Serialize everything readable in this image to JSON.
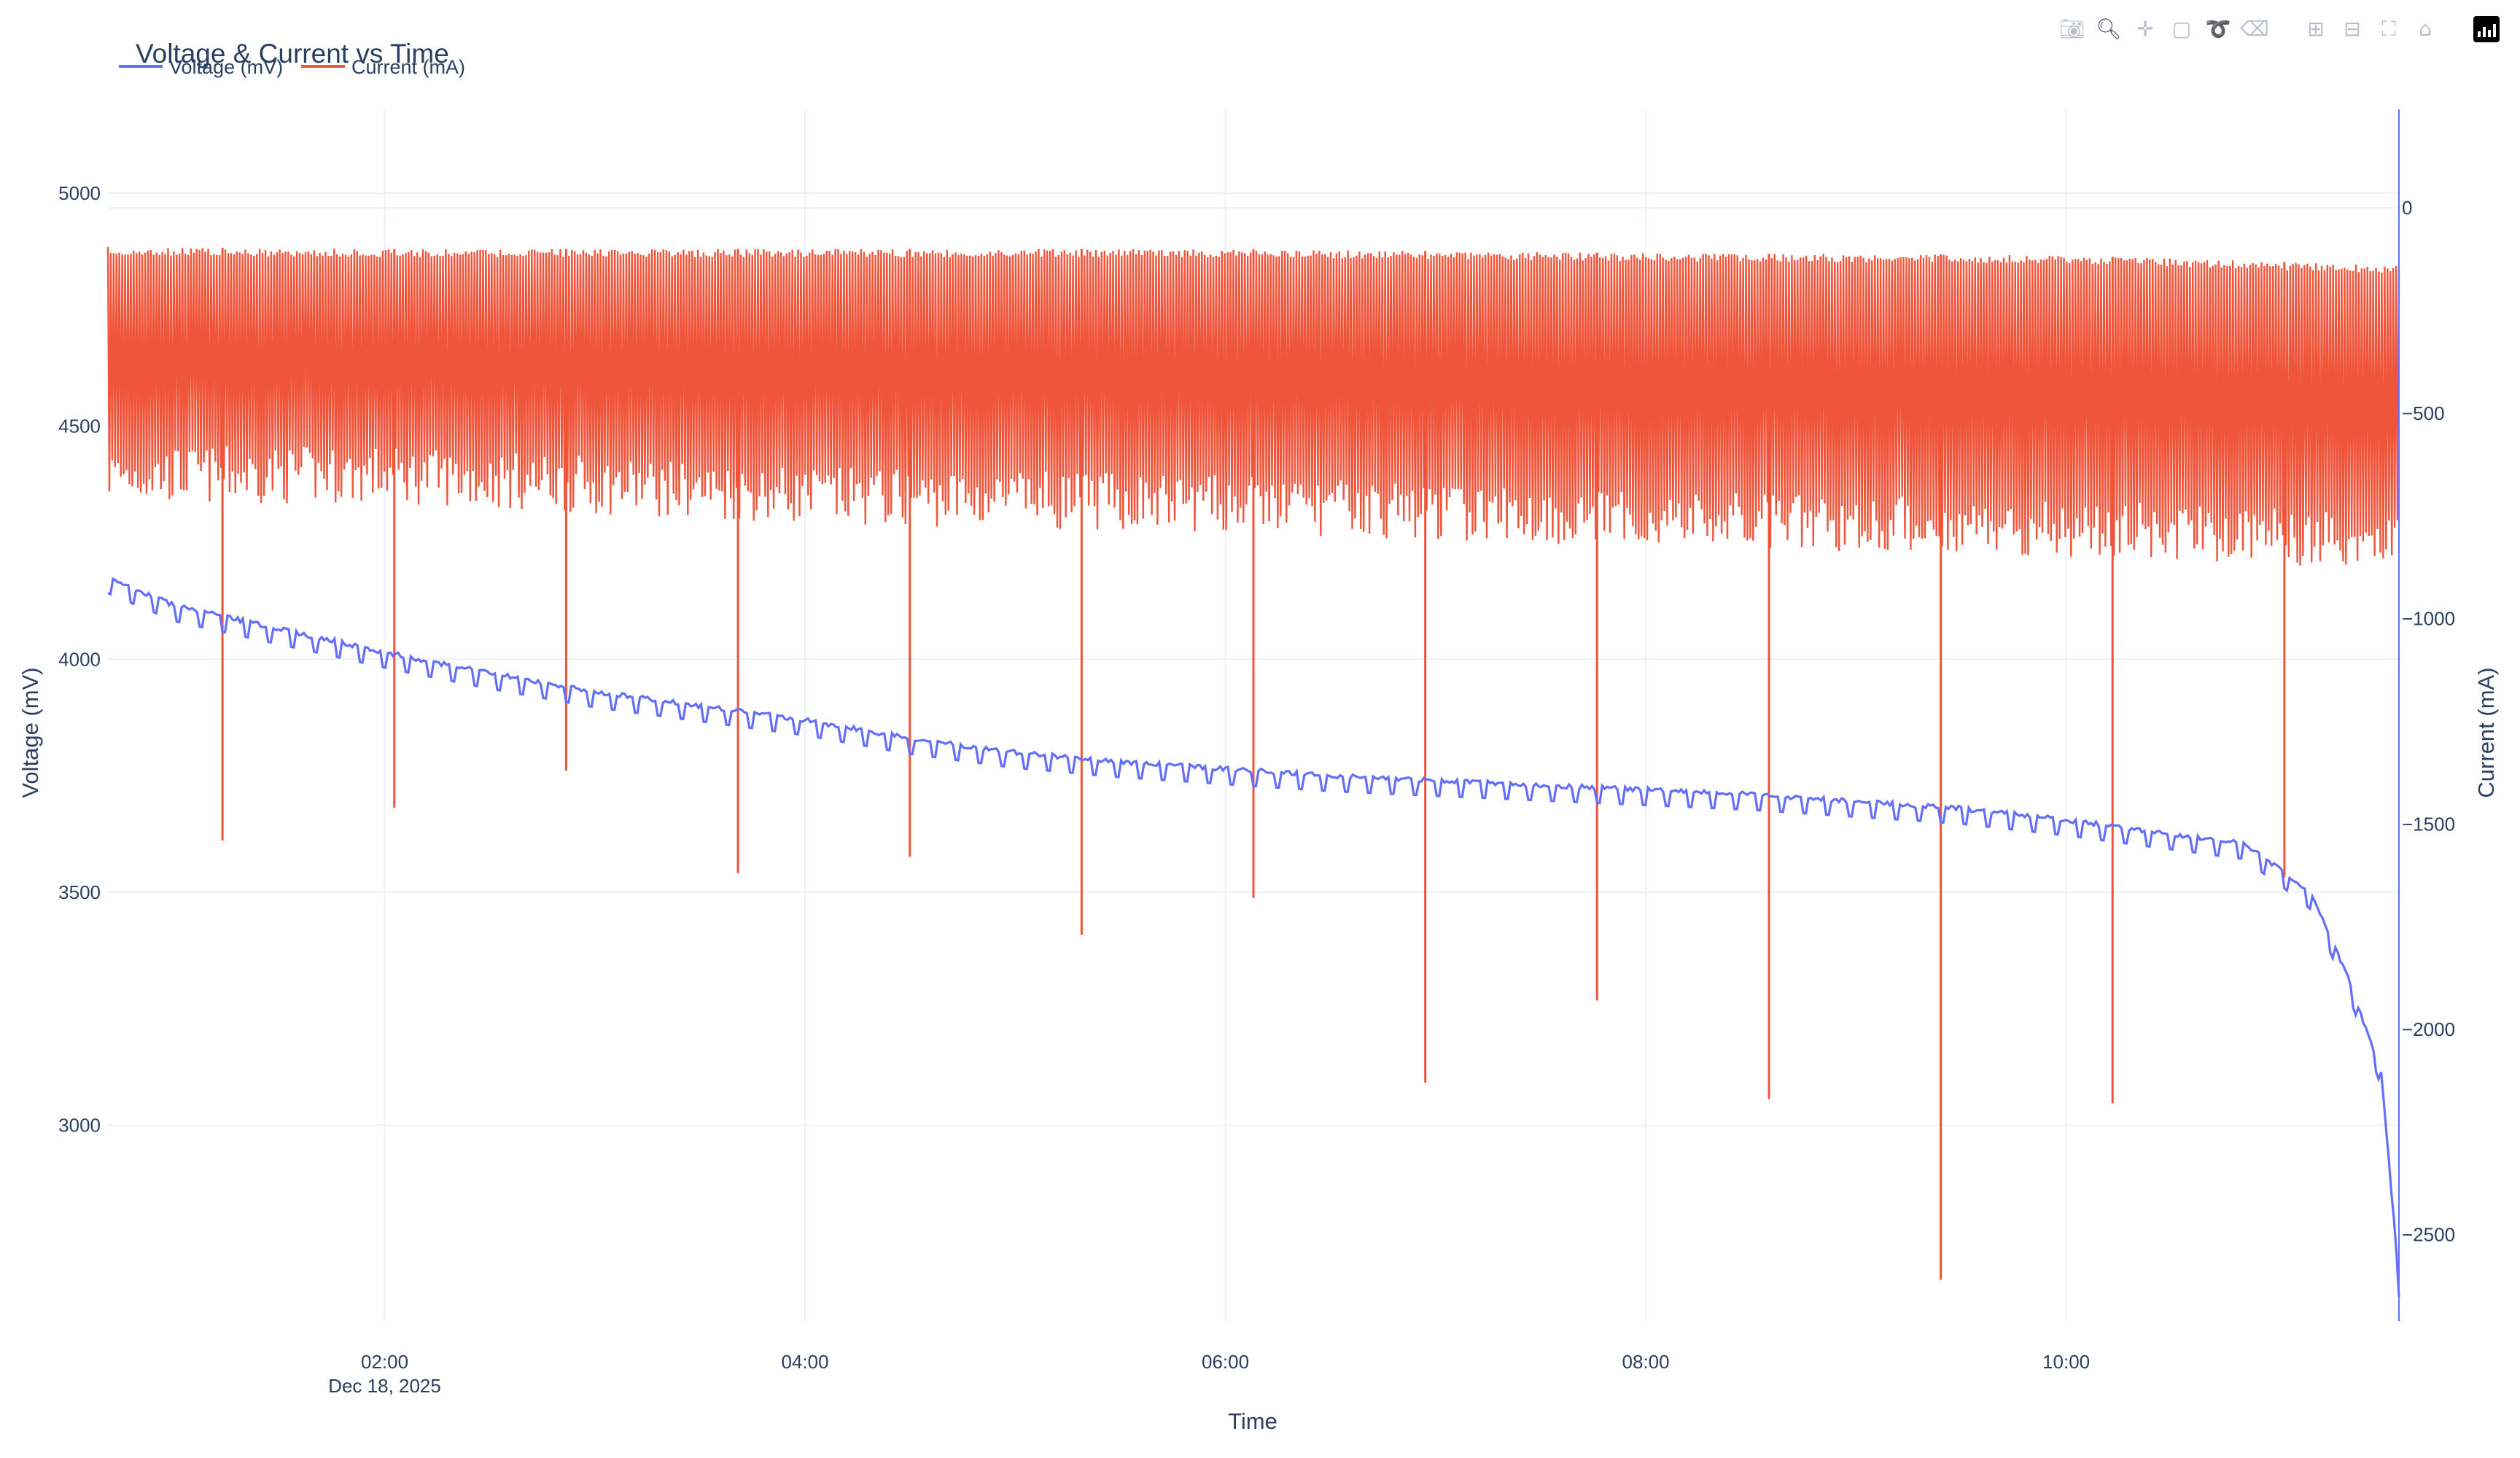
{
  "chart_data": {
    "type": "line",
    "title": "Voltage & Current vs Time",
    "xlabel": "Time",
    "x_range": [
      "2025-12-18T00:41:00",
      "2025-12-18T11:35:00"
    ],
    "x_ticks": [
      {
        "value": "2025-12-18T02:00:00",
        "label": "02:00",
        "sublabel": "Dec 18, 2025"
      },
      {
        "value": "2025-12-18T04:00:00",
        "label": "04:00",
        "sublabel": ""
      },
      {
        "value": "2025-12-18T06:00:00",
        "label": "06:00",
        "sublabel": ""
      },
      {
        "value": "2025-12-18T08:00:00",
        "label": "08:00",
        "sublabel": ""
      },
      {
        "value": "2025-12-18T10:00:00",
        "label": "10:00",
        "sublabel": ""
      }
    ],
    "y_left": {
      "label": "Voltage (mV)",
      "range": [
        2580,
        5180
      ],
      "ticks": [
        3000,
        3500,
        4000,
        4500,
        5000
      ]
    },
    "y_right": {
      "label": "Current (mA)",
      "range": [
        -2710,
        240
      ],
      "ticks": [
        0,
        -500,
        -1000,
        -1500,
        -2000,
        -2500
      ]
    },
    "grid": true,
    "legend": "top-left, horizontal",
    "series": [
      {
        "name": "Voltage (mV)",
        "axis": "left",
        "color": "#636efa",
        "x": [
          "2025-12-18T00:41:00",
          "2025-12-18T01:00:00",
          "2025-12-18T01:30:00",
          "2025-12-18T02:00:00",
          "2025-12-18T02:30:00",
          "2025-12-18T03:00:00",
          "2025-12-18T03:30:00",
          "2025-12-18T04:00:00",
          "2025-12-18T04:30:00",
          "2025-12-18T05:00:00",
          "2025-12-18T05:30:00",
          "2025-12-18T06:00:00",
          "2025-12-18T06:30:00",
          "2025-12-18T07:00:00",
          "2025-12-18T07:30:00",
          "2025-12-18T08:00:00",
          "2025-12-18T08:30:00",
          "2025-12-18T09:00:00",
          "2025-12-18T09:30:00",
          "2025-12-18T10:00:00",
          "2025-12-18T10:30:00",
          "2025-12-18T10:50:00",
          "2025-12-18T11:00:00",
          "2025-12-18T11:10:00",
          "2025-12-18T11:20:00",
          "2025-12-18T11:30:00",
          "2025-12-18T11:35:00"
        ],
        "y": [
          4180,
          4120,
          4070,
          4020,
          3975,
          3935,
          3905,
          3875,
          3835,
          3805,
          3785,
          3770,
          3755,
          3745,
          3735,
          3725,
          3715,
          3700,
          3685,
          3660,
          3630,
          3610,
          3560,
          3500,
          3330,
          3120,
          2670
        ]
      },
      {
        "name": "Current (mA)",
        "axis": "right",
        "color": "#ef553b",
        "x": [
          "2025-12-18T00:41:00",
          "2025-12-18T02:00:00",
          "2025-12-18T04:00:00",
          "2025-12-18T06:00:00",
          "2025-12-18T08:00:00",
          "2025-12-18T10:00:00",
          "2025-12-18T11:35:00"
        ],
        "y_high": [
          -95,
          -100,
          -100,
          -100,
          -110,
          -115,
          -140
        ],
        "y_low": [
          -650,
          -650,
          -700,
          -720,
          -760,
          -780,
          -810
        ],
        "spikes_y": [
          -1540,
          -1460,
          -1370,
          -1620,
          -1580,
          -1770,
          -1680,
          -2130,
          -1930,
          -2170,
          -2610,
          -2180,
          -1630
        ]
      }
    ]
  },
  "modebar": {
    "icons": [
      "camera-icon",
      "zoom-icon",
      "pan-icon",
      "box-select-icon",
      "lasso-select-icon",
      "autoscale-clear-icon",
      "zoom-in-icon",
      "zoom-out-icon",
      "autoscale-icon",
      "reset-axes-icon",
      "plotly-logo-icon"
    ]
  }
}
